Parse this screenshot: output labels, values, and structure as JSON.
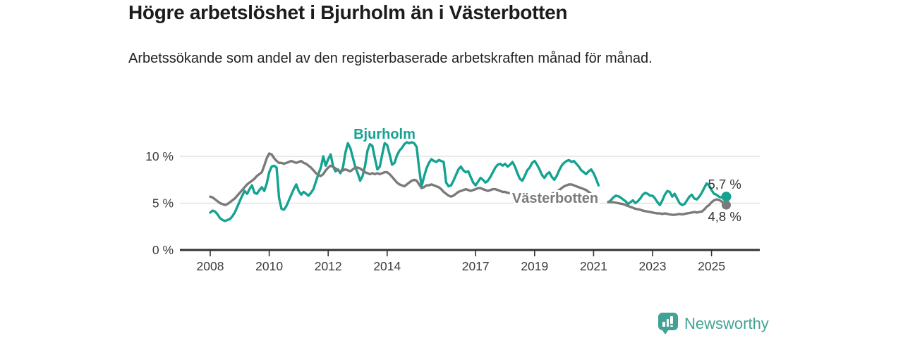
{
  "header": {
    "title": "Högre arbetslöshet i Bjurholm än i Västerbotten",
    "subtitle": "Arbetssökande som andel av den registerbaserade arbetskraften månad för månad."
  },
  "footer": {
    "brand": "Newsworthy"
  },
  "colors": {
    "bjurholm": "#14a291",
    "vasterbotten": "#7a7a7a",
    "grid": "#dcdcdc",
    "axis": "#333333",
    "tick_text": "#3c3c3c",
    "value_text": "#333333",
    "brand": "#43a296"
  },
  "chart_data": {
    "type": "line",
    "title": "Högre arbetslöshet i Bjurholm än i Västerbotten",
    "subtitle": "Arbetssökande som andel av den registerbaserade arbetskraften månad för månad.",
    "x_frequency": "monthly",
    "x_start_year": 2008,
    "x_end": "2025-07",
    "ylim": [
      0,
      12
    ],
    "grid": "horizontal-only",
    "legend_position": "inline-labels",
    "data_gap": "2021-04 to 2021-06",
    "y_axis": {
      "unit": "%",
      "ticks": [
        {
          "value": 0,
          "label": "0 %"
        },
        {
          "value": 5,
          "label": "5 %"
        },
        {
          "value": 10,
          "label": "10 %"
        }
      ],
      "gridline_values": [
        5,
        10
      ]
    },
    "x_axis": {
      "ticks": [
        {
          "year": 2008,
          "label": "2008"
        },
        {
          "year": 2010,
          "label": "2010"
        },
        {
          "year": 2012,
          "label": "2012"
        },
        {
          "year": 2014,
          "label": "2014"
        },
        {
          "year": 2017,
          "label": "2017"
        },
        {
          "year": 2019,
          "label": "2019"
        },
        {
          "year": 2021,
          "label": "2021"
        },
        {
          "year": 2023,
          "label": "2023"
        },
        {
          "year": 2025,
          "label": "2025"
        }
      ]
    },
    "series": [
      {
        "name": "Bjurholm",
        "color": "#14a291",
        "end_label": "5,7 %",
        "end_value": 5.7,
        "values": [
          4.0,
          4.2,
          4.1,
          3.8,
          3.4,
          3.2,
          3.1,
          3.2,
          3.3,
          3.6,
          4.0,
          4.6,
          5.2,
          5.8,
          6.3,
          6.0,
          6.5,
          6.9,
          6.1,
          6.0,
          6.4,
          6.7,
          6.3,
          7.1,
          8.3,
          8.9,
          9.0,
          8.8,
          5.6,
          4.4,
          4.3,
          4.7,
          5.3,
          5.9,
          6.5,
          7.0,
          6.3,
          5.9,
          6.2,
          6.0,
          5.8,
          6.1,
          6.5,
          7.3,
          8.1,
          8.8,
          10.0,
          9.0,
          9.7,
          10.2,
          8.9,
          8.4,
          8.6,
          8.2,
          8.8,
          10.4,
          11.4,
          10.9,
          9.9,
          8.9,
          8.2,
          7.4,
          7.9,
          9.0,
          10.6,
          11.3,
          11.1,
          9.8,
          8.6,
          8.9,
          10.2,
          11.4,
          11.2,
          10.2,
          9.1,
          9.3,
          10.1,
          10.6,
          10.9,
          11.3,
          11.5,
          11.4,
          11.5,
          11.4,
          11.0,
          8.7,
          6.8,
          7.8,
          8.7,
          9.3,
          9.7,
          9.5,
          9.4,
          9.6,
          9.5,
          9.4,
          7.2,
          6.8,
          6.9,
          7.4,
          8.0,
          8.6,
          8.9,
          8.5,
          8.3,
          8.4,
          7.8,
          7.2,
          6.9,
          7.3,
          7.7,
          7.5,
          7.2,
          7.4,
          7.8,
          8.3,
          8.8,
          9.1,
          9.2,
          9.0,
          9.2,
          8.9,
          9.1,
          9.4,
          8.9,
          8.2,
          7.6,
          7.4,
          7.9,
          8.5,
          8.8,
          9.3,
          9.5,
          9.1,
          8.6,
          8.0,
          7.7,
          8.1,
          8.3,
          7.8,
          7.5,
          7.9,
          8.5,
          9.0,
          9.3,
          9.5,
          9.6,
          9.4,
          9.5,
          9.2,
          8.9,
          8.5,
          8.3,
          8.1,
          8.4,
          8.6,
          8.2,
          7.6,
          6.9,
          null,
          null,
          null,
          5.1,
          5.3,
          5.6,
          5.8,
          5.75,
          5.6,
          5.4,
          5.2,
          4.9,
          5.1,
          5.3,
          5.0,
          5.2,
          5.5,
          5.9,
          6.1,
          6.0,
          5.8,
          5.8,
          5.5,
          5.1,
          4.8,
          5.3,
          5.9,
          6.3,
          6.2,
          5.7,
          6.0,
          5.5,
          5.0,
          4.8,
          4.9,
          5.3,
          5.7,
          5.9,
          5.5,
          5.4,
          5.7,
          6.1,
          6.6,
          7.1,
          6.9,
          6.4,
          6.0,
          5.9,
          5.7,
          5.6,
          5.8,
          5.7
        ]
      },
      {
        "name": "Västerbotten",
        "color": "#7a7a7a",
        "end_label": "4,8 %",
        "end_value": 4.8,
        "values": [
          5.7,
          5.6,
          5.4,
          5.2,
          5.0,
          4.9,
          4.8,
          4.9,
          5.1,
          5.3,
          5.5,
          5.8,
          6.1,
          6.4,
          6.7,
          7.0,
          7.2,
          7.4,
          7.6,
          7.9,
          8.1,
          8.3,
          9.0,
          9.8,
          10.3,
          10.2,
          9.8,
          9.5,
          9.3,
          9.3,
          9.2,
          9.3,
          9.4,
          9.5,
          9.4,
          9.3,
          9.4,
          9.5,
          9.3,
          9.2,
          9.0,
          8.8,
          8.5,
          8.2,
          8.0,
          7.9,
          8.1,
          8.5,
          8.8,
          9.0,
          8.9,
          8.7,
          8.5,
          8.4,
          8.5,
          8.6,
          8.5,
          8.4,
          8.6,
          8.8,
          8.8,
          8.7,
          8.5,
          8.3,
          8.2,
          8.1,
          8.2,
          8.1,
          8.2,
          8.1,
          8.2,
          8.3,
          8.3,
          8.1,
          7.8,
          7.5,
          7.2,
          7.0,
          6.9,
          6.8,
          7.0,
          7.2,
          7.4,
          7.5,
          7.4,
          7.0,
          6.6,
          6.7,
          6.9,
          6.9,
          7.0,
          6.9,
          6.8,
          6.7,
          6.5,
          6.2,
          6.0,
          5.8,
          5.7,
          5.8,
          6.0,
          6.2,
          6.3,
          6.4,
          6.5,
          6.4,
          6.3,
          6.4,
          6.5,
          6.6,
          6.6,
          6.5,
          6.4,
          6.3,
          6.4,
          6.5,
          6.5,
          6.4,
          6.3,
          6.2,
          6.2,
          6.1,
          6.1,
          6.0,
          5.9,
          5.9,
          6.0,
          6.0,
          5.9,
          5.8,
          5.8,
          5.9,
          5.9,
          5.8,
          5.8,
          5.7,
          5.7,
          5.8,
          5.9,
          6.0,
          6.1,
          6.2,
          6.4,
          6.6,
          6.8,
          6.9,
          7.0,
          7.0,
          6.9,
          6.8,
          6.7,
          6.6,
          6.5,
          6.4,
          6.2,
          6.0,
          5.8,
          5.6,
          5.4,
          null,
          null,
          null,
          5.15,
          5.1,
          5.1,
          5.05,
          5.0,
          4.95,
          4.9,
          4.8,
          4.7,
          4.6,
          4.5,
          4.4,
          4.35,
          4.3,
          4.2,
          4.15,
          4.1,
          4.05,
          4.0,
          3.95,
          3.9,
          3.9,
          3.85,
          3.9,
          3.85,
          3.8,
          3.75,
          3.75,
          3.8,
          3.85,
          3.8,
          3.85,
          3.9,
          3.95,
          4.0,
          4.05,
          4.0,
          4.05,
          4.1,
          4.3,
          4.6,
          4.8,
          5.1,
          5.3,
          5.4,
          5.35,
          5.2,
          5.0,
          4.8
        ]
      }
    ]
  }
}
